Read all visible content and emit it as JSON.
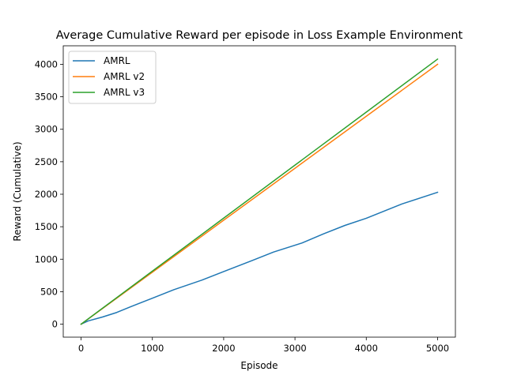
{
  "chart_data": {
    "type": "line",
    "title": "Average Cumulative Reward per episode in Loss Example Environment",
    "xlabel": "Episode",
    "ylabel": "Reward (Cumulative)",
    "xlim": [
      -250,
      5250
    ],
    "ylim": [
      -200,
      4285
    ],
    "xticks": [
      0,
      1000,
      2000,
      3000,
      4000,
      5000
    ],
    "yticks": [
      0,
      500,
      1000,
      1500,
      2000,
      2500,
      3000,
      3500,
      4000
    ],
    "grid": false,
    "legend_position": "upper-left",
    "series": [
      {
        "name": "AMRL",
        "color": "#1f77b4",
        "x": [
          0,
          100,
          300,
          500,
          700,
          1000,
          1300,
          1700,
          2000,
          2400,
          2700,
          3100,
          3400,
          3700,
          4000,
          4500,
          5000
        ],
        "y": [
          0,
          50,
          110,
          180,
          270,
          400,
          530,
          680,
          810,
          980,
          1110,
          1250,
          1390,
          1520,
          1630,
          1850,
          2030
        ]
      },
      {
        "name": "AMRL v2",
        "color": "#ff7f0e",
        "x": [
          0,
          1000,
          2000,
          3000,
          4000,
          5000
        ],
        "y": [
          0,
          800,
          1600,
          2400,
          3200,
          4000
        ]
      },
      {
        "name": "AMRL v3",
        "color": "#2ca02c",
        "x": [
          0,
          1000,
          2000,
          3000,
          4000,
          5000
        ],
        "y": [
          0,
          816,
          1632,
          2448,
          3264,
          4080
        ]
      }
    ]
  }
}
